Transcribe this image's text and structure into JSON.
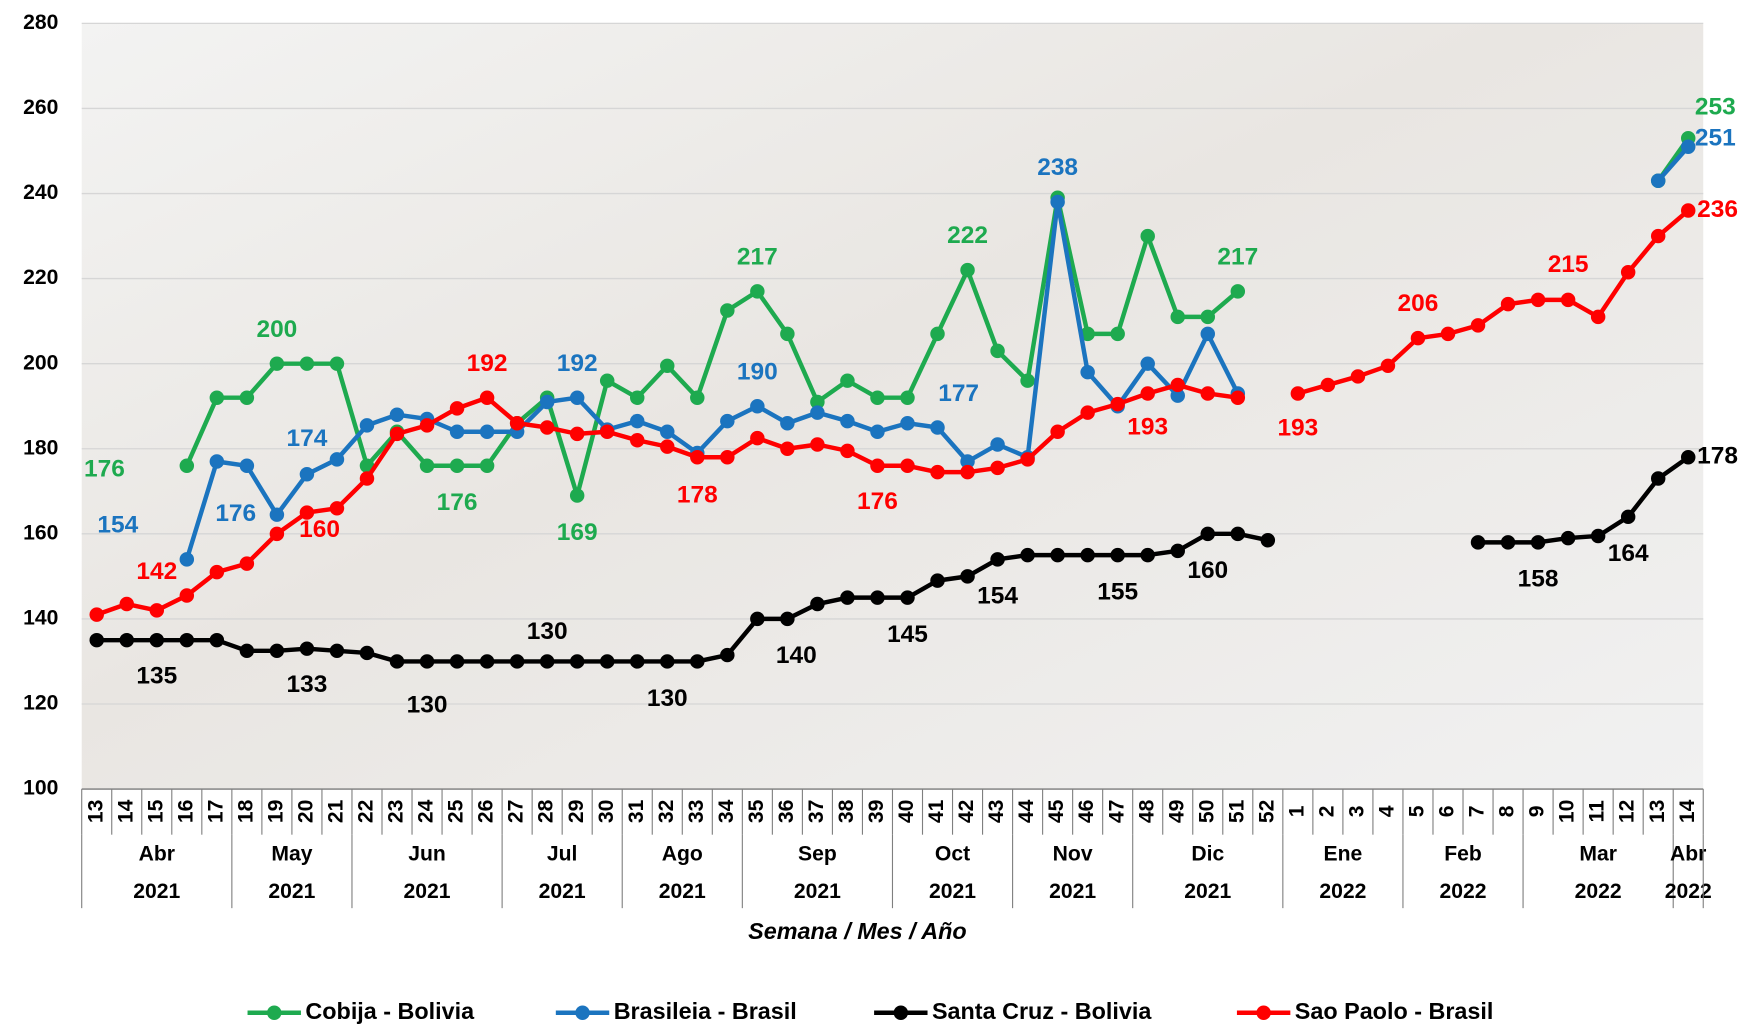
{
  "chart_data": {
    "type": "line",
    "x_label": "Semana / Mes / Año",
    "categories": [
      "13",
      "14",
      "15",
      "16",
      "17",
      "18",
      "19",
      "20",
      "21",
      "22",
      "23",
      "24",
      "25",
      "26",
      "27",
      "28",
      "29",
      "30",
      "31",
      "32",
      "33",
      "34",
      "35",
      "36",
      "37",
      "38",
      "39",
      "40",
      "41",
      "42",
      "43",
      "44",
      "45",
      "46",
      "47",
      "48",
      "49",
      "50",
      "51",
      "52",
      "1",
      "2",
      "3",
      "4",
      "5",
      "6",
      "7",
      "8",
      "9",
      "10",
      "11",
      "12",
      "13",
      "14"
    ],
    "months": [
      "Abr",
      "Abr",
      "Abr",
      "Abr",
      "Abr",
      "May",
      "May",
      "May",
      "May",
      "Jun",
      "Jun",
      "Jun",
      "Jun",
      "Jun",
      "Jul",
      "Jul",
      "Jul",
      "Jul",
      "Ago",
      "Ago",
      "Ago",
      "Ago",
      "Sep",
      "Sep",
      "Sep",
      "Sep",
      "Sep",
      "Oct",
      "Oct",
      "Oct",
      "Oct",
      "Nov",
      "Nov",
      "Nov",
      "Nov",
      "Dic",
      "Dic",
      "Dic",
      "Dic",
      "Dic",
      "Ene",
      "Ene",
      "Ene",
      "Ene",
      "Feb",
      "Feb",
      "Feb",
      "Feb",
      "Mar",
      "Mar",
      "Mar",
      "Mar",
      "Mar",
      "Abr"
    ],
    "years": [
      "2021",
      "2021",
      "2021",
      "2021",
      "2021",
      "2021",
      "2021",
      "2021",
      "2021",
      "2021",
      "2021",
      "2021",
      "2021",
      "2021",
      "2021",
      "2021",
      "2021",
      "2021",
      "2021",
      "2021",
      "2021",
      "2021",
      "2021",
      "2021",
      "2021",
      "2021",
      "2021",
      "2021",
      "2021",
      "2021",
      "2021",
      "2021",
      "2021",
      "2021",
      "2021",
      "2021",
      "2021",
      "2021",
      "2021",
      "2021",
      "2022",
      "2022",
      "2022",
      "2022",
      "2022",
      "2022",
      "2022",
      "2022",
      "2022",
      "2022",
      "2022",
      "2022",
      "2022",
      "2022"
    ],
    "ylim": [
      100,
      280
    ],
    "yticks": [
      100,
      120,
      140,
      160,
      180,
      200,
      220,
      240,
      260,
      280
    ],
    "grid": true,
    "legend": "bottom",
    "series": [
      {
        "name": "Cobija - Bolivia",
        "color": "#1eaa4f",
        "values": [
          null,
          null,
          null,
          176,
          192,
          192,
          200,
          200,
          200,
          176,
          184,
          176,
          176,
          176,
          186,
          192,
          169,
          196,
          192,
          199.5,
          192,
          212.5,
          217,
          207,
          191,
          196,
          192,
          192,
          207,
          222,
          203,
          196,
          239,
          207,
          207,
          230,
          211,
          211,
          217,
          null,
          null,
          null,
          null,
          null,
          null,
          null,
          null,
          null,
          null,
          null,
          null,
          null,
          243,
          253
        ],
        "value_labels": [
          null,
          null,
          null,
          "176",
          null,
          null,
          "200",
          null,
          null,
          null,
          null,
          null,
          "176",
          null,
          null,
          null,
          "169",
          null,
          null,
          null,
          null,
          null,
          "217",
          null,
          null,
          null,
          null,
          null,
          null,
          "222",
          null,
          null,
          null,
          null,
          null,
          null,
          null,
          null,
          "217",
          null,
          null,
          null,
          null,
          null,
          null,
          null,
          null,
          null,
          null,
          null,
          null,
          null,
          null,
          "253"
        ]
      },
      {
        "name": "Brasileia - Brasil",
        "color": "#1b74bf",
        "values": [
          null,
          null,
          null,
          154,
          177,
          176,
          164.5,
          174,
          177.5,
          185.5,
          188,
          187,
          184,
          184,
          184,
          191,
          192,
          184.5,
          186.5,
          184,
          179,
          186.5,
          190,
          186,
          188.5,
          186.5,
          184,
          186,
          185,
          177,
          181,
          178,
          238,
          198,
          190,
          200,
          192.5,
          207,
          193,
          null,
          null,
          null,
          null,
          null,
          null,
          null,
          null,
          null,
          null,
          null,
          null,
          null,
          243,
          251
        ],
        "value_labels": [
          null,
          null,
          null,
          "154",
          null,
          "176",
          null,
          "174",
          null,
          null,
          null,
          null,
          null,
          null,
          null,
          null,
          "192",
          null,
          null,
          null,
          null,
          null,
          "190",
          null,
          null,
          null,
          null,
          null,
          null,
          "177",
          null,
          null,
          "238",
          null,
          null,
          null,
          null,
          null,
          null,
          null,
          null,
          null,
          null,
          null,
          null,
          null,
          null,
          null,
          null,
          null,
          null,
          null,
          null,
          "251"
        ]
      },
      {
        "name": "Santa Cruz - Bolivia",
        "color": "#000000",
        "values": [
          135,
          135,
          135,
          135,
          135,
          132.5,
          132.5,
          133,
          132.5,
          132,
          130,
          130,
          130,
          130,
          130,
          130,
          130,
          130,
          130,
          130,
          130,
          131.5,
          140,
          140,
          143.5,
          145,
          145,
          145,
          149,
          150,
          154,
          155,
          155,
          155,
          155,
          155,
          156,
          160,
          160,
          158.5,
          null,
          null,
          null,
          null,
          null,
          null,
          158,
          158,
          158,
          159,
          159.5,
          164,
          173,
          178
        ],
        "value_labels": [
          null,
          null,
          "135",
          null,
          null,
          null,
          null,
          "133",
          null,
          null,
          null,
          "130",
          null,
          null,
          null,
          "130",
          null,
          null,
          null,
          "130",
          null,
          null,
          null,
          "140",
          null,
          null,
          null,
          "145",
          null,
          null,
          "154",
          null,
          null,
          null,
          "155",
          null,
          null,
          "160",
          null,
          null,
          null,
          null,
          null,
          null,
          null,
          null,
          null,
          null,
          "158",
          null,
          null,
          "164",
          null,
          "178"
        ]
      },
      {
        "name": "Sao Paolo - Brasil",
        "color": "#ff0000",
        "values": [
          141,
          143.5,
          142,
          145.5,
          151,
          153,
          160,
          165,
          166,
          173,
          183.5,
          185.5,
          189.5,
          192,
          186,
          185,
          183.5,
          184,
          182,
          180.5,
          178,
          178,
          182.5,
          180,
          181,
          179.5,
          176,
          176,
          174.5,
          174.5,
          175.5,
          177.5,
          184,
          188.5,
          190.5,
          193,
          195,
          193,
          192,
          null,
          193,
          195,
          197,
          199.5,
          206,
          207,
          209,
          214,
          215,
          215,
          211,
          221.5,
          230,
          236
        ],
        "value_labels": [
          null,
          null,
          "142",
          null,
          null,
          null,
          "160",
          null,
          null,
          null,
          null,
          null,
          null,
          "192",
          null,
          null,
          null,
          null,
          null,
          null,
          "178",
          null,
          null,
          null,
          null,
          null,
          "176",
          null,
          null,
          null,
          null,
          null,
          null,
          null,
          null,
          "193",
          null,
          null,
          null,
          null,
          "193",
          null,
          null,
          null,
          "206",
          null,
          null,
          null,
          null,
          "215",
          null,
          null,
          null,
          "236"
        ]
      }
    ]
  }
}
